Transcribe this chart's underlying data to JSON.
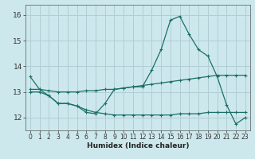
{
  "xlabel": "Humidex (Indice chaleur)",
  "xlim": [
    -0.5,
    23.5
  ],
  "ylim": [
    11.5,
    16.4
  ],
  "yticks": [
    12,
    13,
    14,
    15,
    16
  ],
  "xticks": [
    0,
    1,
    2,
    3,
    4,
    5,
    6,
    7,
    8,
    9,
    10,
    11,
    12,
    13,
    14,
    15,
    16,
    17,
    18,
    19,
    20,
    21,
    22,
    23
  ],
  "bg_color": "#cde8ec",
  "grid_color": "#b0ced4",
  "line_color": "#1a7068",
  "line1_y": [
    13.6,
    13.1,
    12.85,
    12.55,
    12.55,
    12.45,
    12.2,
    12.15,
    12.55,
    13.1,
    13.15,
    13.2,
    13.2,
    13.85,
    14.65,
    15.8,
    15.95,
    15.25,
    14.65,
    14.4,
    13.6,
    12.5,
    11.75,
    12.0
  ],
  "line2_y": [
    13.1,
    13.1,
    13.05,
    13.0,
    13.0,
    13.0,
    13.05,
    13.05,
    13.1,
    13.1,
    13.15,
    13.2,
    13.25,
    13.3,
    13.35,
    13.4,
    13.45,
    13.5,
    13.55,
    13.6,
    13.65,
    13.65,
    13.65,
    13.65
  ],
  "line3_y": [
    13.0,
    13.0,
    12.85,
    12.55,
    12.55,
    12.45,
    12.3,
    12.2,
    12.15,
    12.1,
    12.1,
    12.1,
    12.1,
    12.1,
    12.1,
    12.1,
    12.15,
    12.15,
    12.15,
    12.2,
    12.2,
    12.2,
    12.2,
    12.2
  ]
}
